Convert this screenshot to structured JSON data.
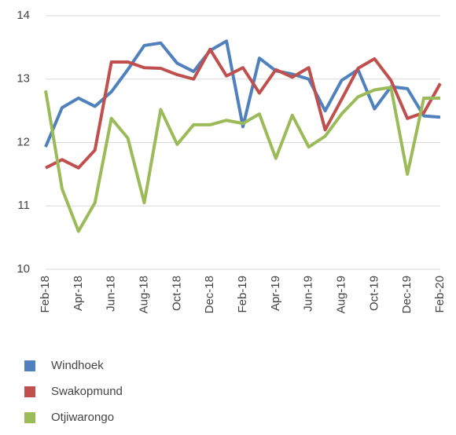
{
  "chart_data": {
    "type": "line",
    "categories": [
      "Feb-18",
      null,
      "Apr-18",
      null,
      "Jun-18",
      null,
      "Aug-18",
      null,
      "Oct-18",
      null,
      "Dec-18",
      null,
      "Feb-19",
      null,
      "Apr-19",
      null,
      "Jun-19",
      null,
      "Aug-19",
      null,
      "Oct-19",
      null,
      "Dec-19",
      null,
      "Feb-20"
    ],
    "series": [
      {
        "name": "Windhoek",
        "color": "#4f81bd",
        "values": [
          11.93,
          12.55,
          12.7,
          12.57,
          12.8,
          13.15,
          13.53,
          13.57,
          13.25,
          13.12,
          13.45,
          13.6,
          12.25,
          13.33,
          13.13,
          13.08,
          13.0,
          12.5,
          12.98,
          13.15,
          12.53,
          12.88,
          12.85,
          12.42,
          12.4
        ]
      },
      {
        "name": "Swakopmund",
        "color": "#c0504d",
        "values": [
          11.6,
          11.73,
          11.6,
          11.88,
          13.27,
          13.27,
          13.18,
          13.17,
          13.07,
          13.0,
          13.47,
          13.05,
          13.18,
          12.78,
          13.15,
          13.03,
          13.18,
          12.2,
          12.68,
          13.17,
          13.32,
          12.98,
          12.38,
          12.47,
          12.93
        ]
      },
      {
        "name": "Otjiwarongo",
        "color": "#9bbb59",
        "values": [
          12.82,
          11.27,
          10.6,
          11.05,
          12.38,
          12.07,
          11.05,
          12.52,
          11.97,
          12.28,
          12.28,
          12.35,
          12.3,
          12.45,
          11.75,
          12.43,
          11.93,
          12.1,
          12.45,
          12.72,
          12.83,
          12.87,
          11.5,
          12.7,
          12.7
        ]
      }
    ],
    "ylim": [
      10,
      14
    ],
    "yticks": [
      10,
      11,
      12,
      13,
      14
    ],
    "grid": true,
    "legend": "bottom"
  }
}
